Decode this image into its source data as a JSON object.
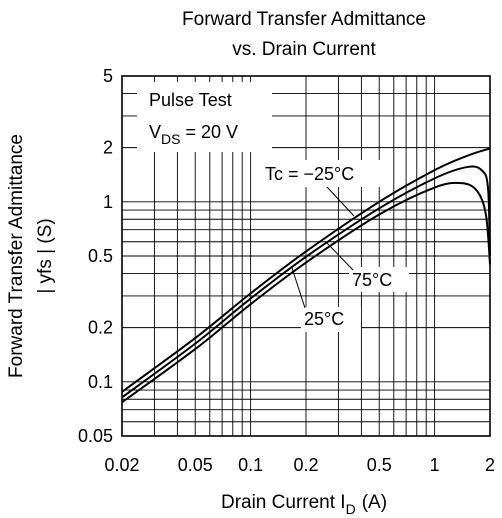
{
  "chart_data": {
    "type": "line",
    "title_line1": "Forward Transfer Admittance",
    "title_line2": "vs. Drain Current",
    "xlabel": "Drain Current I",
    "xlabel_sub": "D",
    "xlabel_unit": "(A)",
    "ylabel_line1": "Forward Transfer Admittance",
    "ylabel_line2": "| yfs |  (S)",
    "x_scale": "log",
    "y_scale": "log",
    "xlim": [
      0.02,
      2
    ],
    "ylim": [
      0.05,
      5
    ],
    "grid": true,
    "x_ticks": [
      {
        "value": 0.02,
        "label": "0.02"
      },
      {
        "value": 0.05,
        "label": "0.05"
      },
      {
        "value": 0.1,
        "label": "0.1"
      },
      {
        "value": 0.2,
        "label": "0.2"
      },
      {
        "value": 0.5,
        "label": "0.5"
      },
      {
        "value": 1,
        "label": "1"
      },
      {
        "value": 2,
        "label": "2"
      }
    ],
    "y_ticks": [
      {
        "value": 0.05,
        "label": "0.05"
      },
      {
        "value": 0.1,
        "label": "0.1"
      },
      {
        "value": 0.2,
        "label": "0.2"
      },
      {
        "value": 0.5,
        "label": "0.5"
      },
      {
        "value": 1,
        "label": "1"
      },
      {
        "value": 2,
        "label": "2"
      },
      {
        "value": 5,
        "label": "5"
      }
    ],
    "condition_line1": "Pulse Test",
    "condition_v": "V",
    "condition_sub": "DS",
    "condition_rest": " = 20 V",
    "series": [
      {
        "name": "Tc = −25°C",
        "x": [
          0.02,
          0.05,
          0.1,
          0.2,
          0.5,
          1.0,
          1.5,
          2.0
        ],
        "y": [
          0.088,
          0.175,
          0.31,
          0.53,
          1.0,
          1.5,
          1.8,
          1.98
        ]
      },
      {
        "name": "25°C",
        "x": [
          0.02,
          0.05,
          0.1,
          0.2,
          0.5,
          1.0,
          1.5,
          1.8,
          1.95,
          2.0
        ],
        "y": [
          0.082,
          0.163,
          0.29,
          0.495,
          0.92,
          1.35,
          1.56,
          1.5,
          1.2,
          0.5
        ]
      },
      {
        "name": "75°C",
        "x": [
          0.02,
          0.05,
          0.1,
          0.2,
          0.5,
          1.0,
          1.4,
          1.7,
          1.9,
          2.0
        ],
        "y": [
          0.077,
          0.152,
          0.27,
          0.46,
          0.85,
          1.2,
          1.27,
          1.15,
          0.85,
          0.45
        ]
      }
    ]
  }
}
